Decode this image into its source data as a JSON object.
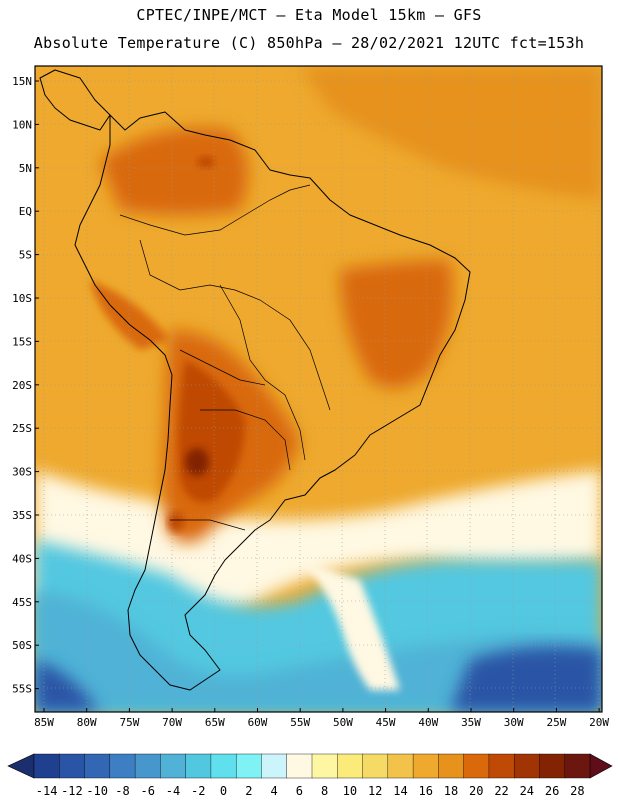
{
  "header": {
    "line1": "CPTEC/INPE/MCT –  Eta Model 15km – GFS",
    "line2": "Absolute Temperature (C) 850hPa – 28/02/2021 12UTC fct=153h"
  },
  "map": {
    "lat_labels": [
      "15N",
      "10N",
      "5N",
      "EQ",
      "5S",
      "10S",
      "15S",
      "20S",
      "25S",
      "30S",
      "35S",
      "40S",
      "45S",
      "50S",
      "55S"
    ],
    "lon_labels": [
      "85W",
      "80W",
      "75W",
      "70W",
      "65W",
      "60W",
      "55W",
      "50W",
      "45W",
      "40W",
      "35W",
      "30W",
      "25W",
      "20W"
    ]
  },
  "colorbar": {
    "labels": [
      "-14",
      "-12",
      "-10",
      "-8",
      "-6",
      "-4",
      "-2",
      "0",
      "2",
      "4",
      "6",
      "8",
      "10",
      "12",
      "14",
      "16",
      "18",
      "20",
      "22",
      "24",
      "26",
      "28"
    ],
    "colors": [
      "#1f3f8f",
      "#2a55a6",
      "#3467b3",
      "#3d7fc2",
      "#4897cc",
      "#4fb2d6",
      "#52c8e0",
      "#5fe0ec",
      "#7ef2f4",
      "#ccf4fb",
      "#fff8e2",
      "#fdf7a3",
      "#fbeb7a",
      "#f6da66",
      "#f2c24a",
      "#eea92e",
      "#e6921c",
      "#d9690b",
      "#bf4a06",
      "#a03405",
      "#822303",
      "#6b1710"
    ],
    "low_arrow_color": "#1b2f6e",
    "high_arrow_color": "#5e0e18"
  },
  "colors": {
    "cold_deep": "#2a55a6",
    "cold": "#4fb2d6",
    "cyan": "#52c8e0",
    "pale": "#fff8e2",
    "warm_base": "#eea92e",
    "warm_mid": "#e6921c",
    "hot": "#d9690b",
    "hotter": "#bf4a06",
    "hottest": "#822303",
    "coast": "#000000"
  }
}
